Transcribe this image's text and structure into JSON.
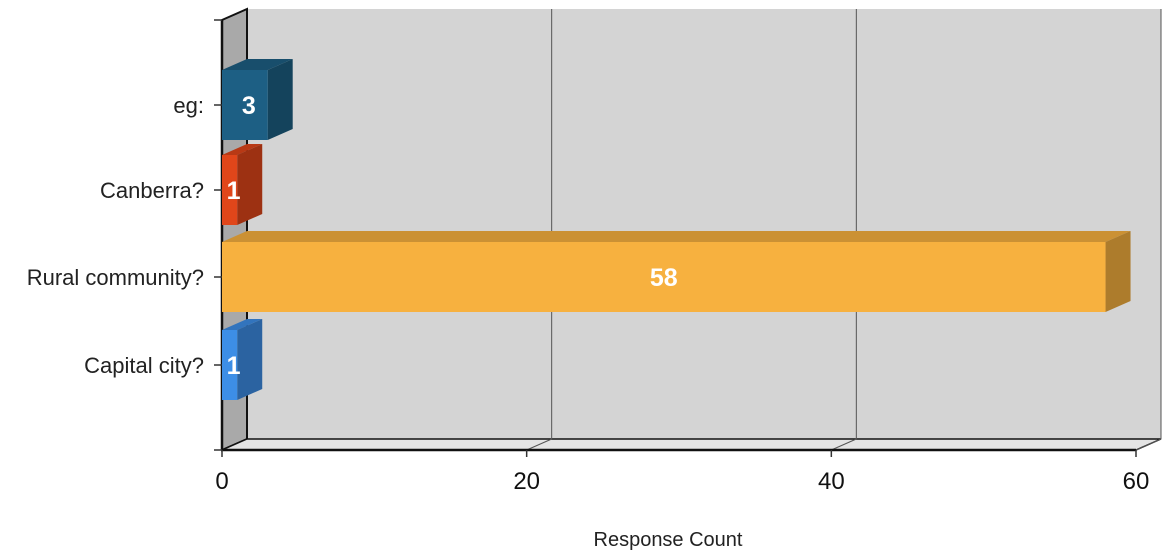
{
  "chart_data": {
    "type": "bar",
    "orientation": "horizontal",
    "categories": [
      "eg:",
      "Canberra?",
      "Rural community?",
      "Capital city?"
    ],
    "values": [
      3,
      1,
      58,
      1
    ],
    "data_labels": [
      "3",
      "1",
      "58",
      "1"
    ],
    "colors": [
      "#1d5f84",
      "#e0461a",
      "#f7b13f",
      "#3d8ee6"
    ],
    "xlabel": "Response Count",
    "ylabel": "",
    "xlim": [
      0,
      60
    ],
    "xticks": [
      "0",
      "20",
      "40",
      "60"
    ],
    "grid": true,
    "legend": "none",
    "style": "3d"
  }
}
